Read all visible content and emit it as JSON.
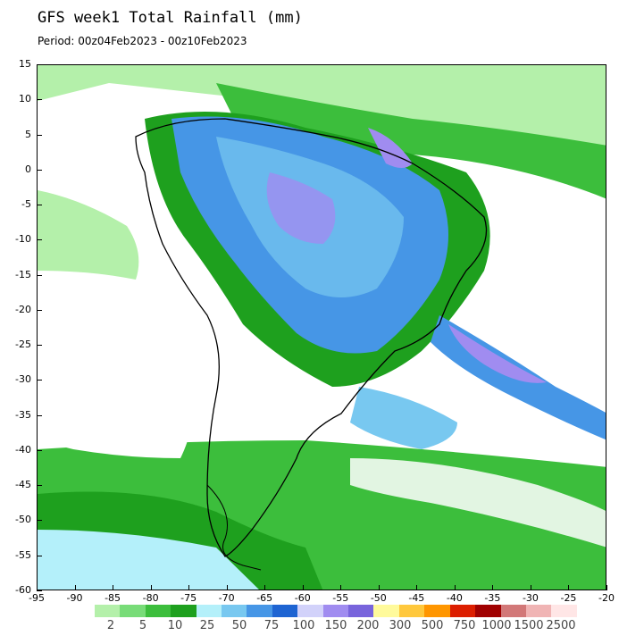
{
  "title": "GFS week1 Total Rainfall (mm)",
  "subtitle": "Period: 00z04Feb2023 - 00z10Feb2023",
  "map": {
    "lat_ticks": [
      "15",
      "10",
      "5",
      "0",
      "-5",
      "-10",
      "-15",
      "-20",
      "-25",
      "-30",
      "-35",
      "-40",
      "-45",
      "-50",
      "-55",
      "-60"
    ],
    "lon_ticks": [
      "-95",
      "-90",
      "-85",
      "-80",
      "-75",
      "-70",
      "-65",
      "-60",
      "-55",
      "-50",
      "-45",
      "-40",
      "-35",
      "-30",
      "-25",
      "-20"
    ]
  },
  "legend": {
    "labels": [
      "2",
      "5",
      "10",
      "25",
      "50",
      "75",
      "100",
      "150",
      "200",
      "300",
      "500",
      "750",
      "1000",
      "1500",
      "2500"
    ],
    "colors": [
      "#b4f0aa",
      "#78dc78",
      "#3cbe3c",
      "#1ea01e",
      "#b4f0fa",
      "#78c8f0",
      "#4696e6",
      "#1e64d2",
      "#d2d2fa",
      "#a08cf0",
      "#7864dc",
      "#fffa9b",
      "#ffc83c",
      "#ff9600",
      "#dc1e00",
      "#a00000",
      "#d27878",
      "#f0b4b4",
      "#ffe6e6"
    ]
  }
}
